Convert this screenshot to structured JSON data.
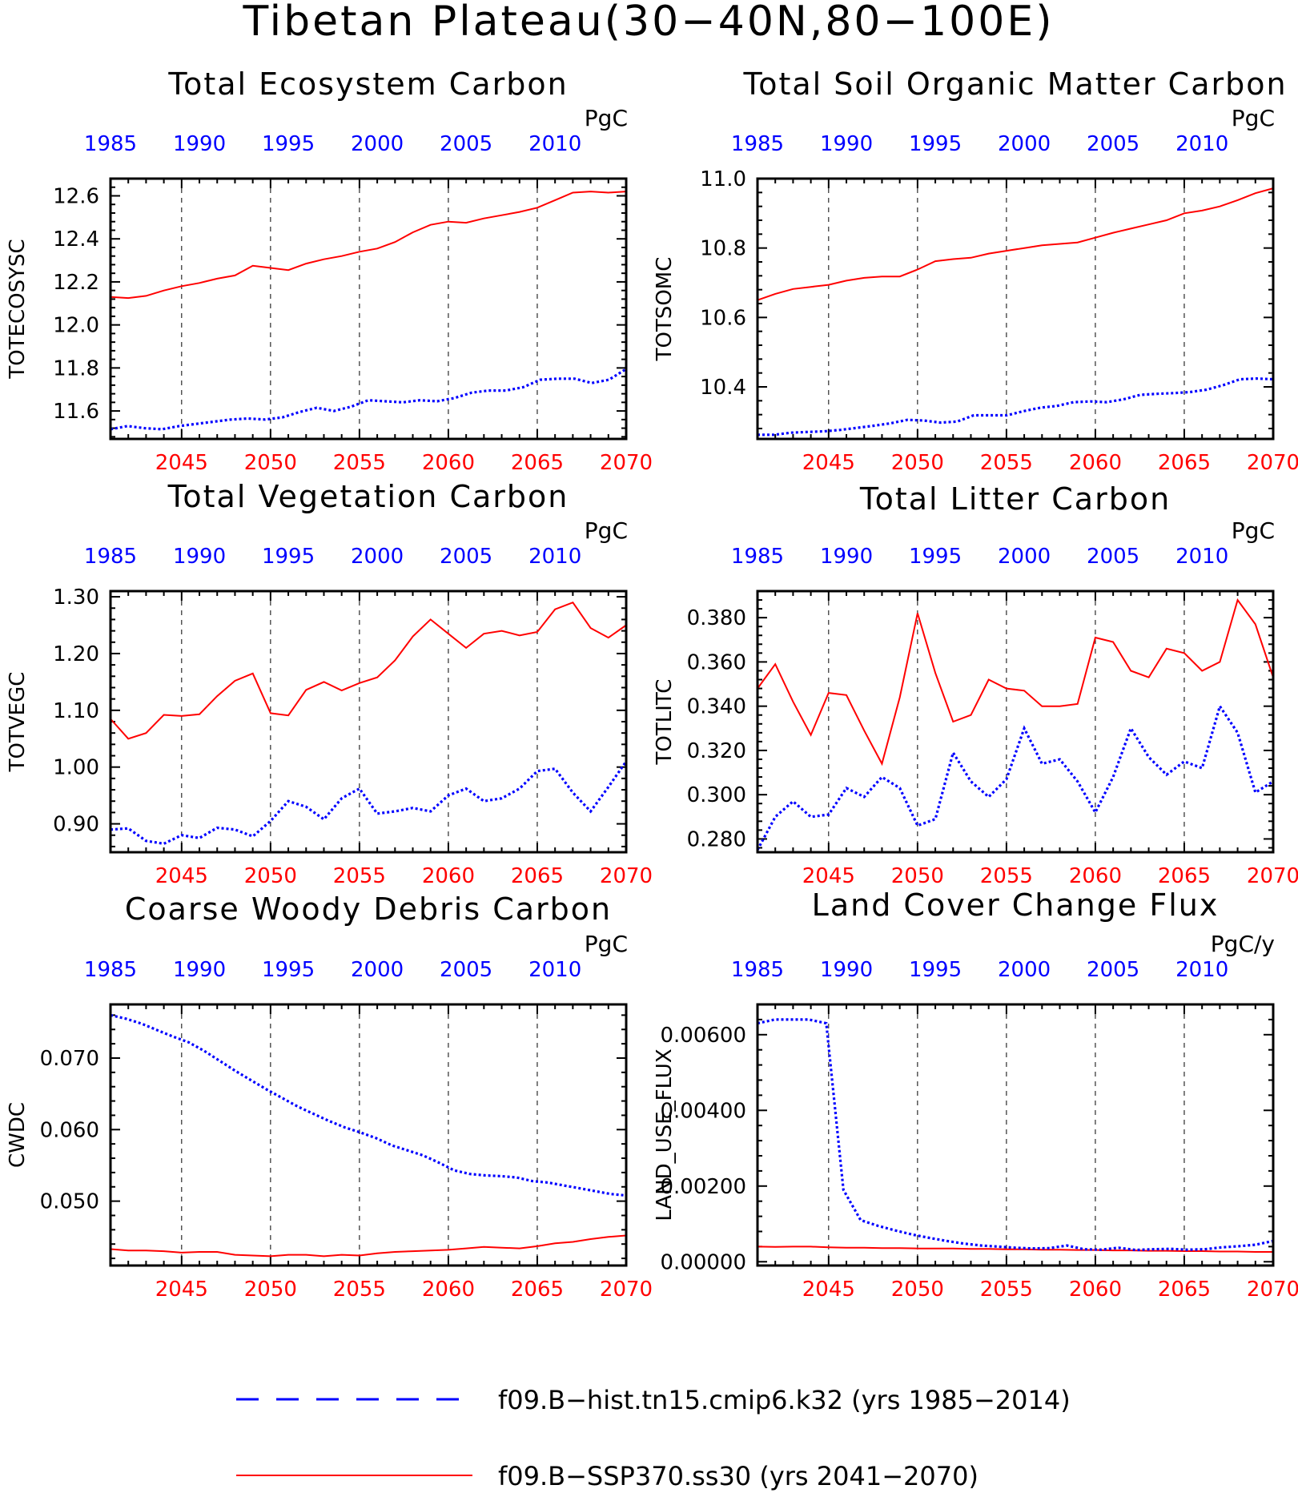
{
  "figure_title": "Tibetan Plateau(30−40N,80−100E)",
  "legend": [
    {
      "label": "f09.B−hist.tn15.cmip6.k32 (yrs 1985−2014)",
      "color": "#0000ff",
      "style": "dashed"
    },
    {
      "label": "f09.B−SSP370.ss30 (yrs 2041−2070)",
      "color": "#ff0000",
      "style": "solid"
    }
  ],
  "colors": {
    "hist": "#0000ff",
    "ssp": "#ff0000",
    "axis": "#000000"
  },
  "chart_data": [
    {
      "type": "line",
      "title": "Total Ecosystem Carbon",
      "ylabel": "TOTECOSYSC",
      "units": "PgC",
      "ylim": [
        11.47,
        12.68
      ],
      "yticks": [
        11.6,
        11.8,
        12.0,
        12.2,
        12.4,
        12.6
      ],
      "ytick_labels": [
        "11.6",
        "11.8",
        "12.0",
        "12.2",
        "12.4",
        "12.6"
      ],
      "x_bottom_ticks": [
        "2045",
        "2050",
        "2055",
        "2060",
        "2065",
        "2070"
      ],
      "x_top_ticks": [
        "1985",
        "1990",
        "1995",
        "2000",
        "2005",
        "2010"
      ],
      "series": [
        {
          "x_start": 2041,
          "values": [
            12.13,
            12.125,
            12.135,
            12.16,
            12.18,
            12.195,
            12.215,
            12.23,
            12.275,
            12.265,
            12.255,
            12.285,
            12.305,
            12.32,
            12.34,
            12.355,
            12.385,
            12.43,
            12.465,
            12.48,
            12.475,
            12.495,
            12.51,
            12.525,
            12.545,
            12.58,
            12.615,
            12.62,
            12.615,
            12.62
          ]
        },
        {
          "x_start": 1985,
          "values": [
            11.515,
            11.53,
            11.52,
            11.515,
            11.53,
            11.54,
            11.55,
            11.56,
            11.565,
            11.56,
            11.57,
            11.595,
            11.615,
            11.6,
            11.62,
            11.65,
            11.645,
            11.64,
            11.65,
            11.645,
            11.66,
            11.685,
            11.695,
            11.695,
            11.71,
            11.745,
            11.75,
            11.75,
            11.73,
            11.745,
            11.795
          ]
        }
      ]
    },
    {
      "type": "line",
      "title": "Total Soil Organic Matter Carbon",
      "ylabel": "TOTSOMC",
      "units": "PgC",
      "ylim": [
        10.25,
        11.0
      ],
      "yticks": [
        10.4,
        10.6,
        10.8,
        11.0
      ],
      "ytick_labels": [
        "10.4",
        "10.6",
        "10.8",
        "11.0"
      ],
      "x_bottom_ticks": [
        "2045",
        "2050",
        "2055",
        "2060",
        "2065",
        "2070"
      ],
      "x_top_ticks": [
        "1985",
        "1990",
        "1995",
        "2000",
        "2005",
        "2010"
      ],
      "series": [
        {
          "x_start": 2041,
          "values": [
            10.65,
            10.668,
            10.682,
            10.688,
            10.694,
            10.706,
            10.714,
            10.718,
            10.718,
            10.738,
            10.762,
            10.768,
            10.772,
            10.784,
            10.792,
            10.8,
            10.808,
            10.812,
            10.816,
            10.83,
            10.844,
            10.856,
            10.868,
            10.88,
            10.9,
            10.908,
            10.92,
            10.938,
            10.958,
            10.972
          ]
        },
        {
          "x_start": 1985,
          "values": [
            10.262,
            10.262,
            10.268,
            10.27,
            10.272,
            10.276,
            10.282,
            10.288,
            10.295,
            10.305,
            10.303,
            10.297,
            10.3,
            10.318,
            10.318,
            10.318,
            10.33,
            10.34,
            10.345,
            10.356,
            10.358,
            10.356,
            10.364,
            10.377,
            10.38,
            10.382,
            10.385,
            10.392,
            10.405,
            10.422,
            10.424,
            10.422
          ]
        }
      ]
    },
    {
      "type": "line",
      "title": "Total Vegetation Carbon",
      "ylabel": "TOTVEGC",
      "units": "PgC",
      "ylim": [
        0.85,
        1.31
      ],
      "yticks": [
        0.9,
        1.0,
        1.1,
        1.2,
        1.3
      ],
      "ytick_labels": [
        "0.90",
        "1.00",
        "1.10",
        "1.20",
        "1.30"
      ],
      "x_bottom_ticks": [
        "2045",
        "2050",
        "2055",
        "2060",
        "2065",
        "2070"
      ],
      "x_top_ticks": [
        "1985",
        "1990",
        "1995",
        "2000",
        "2005",
        "2010"
      ],
      "series": [
        {
          "x_start": 2041,
          "values": [
            1.085,
            1.05,
            1.06,
            1.092,
            1.09,
            1.093,
            1.125,
            1.152,
            1.165,
            1.095,
            1.091,
            1.136,
            1.15,
            1.135,
            1.148,
            1.158,
            1.188,
            1.23,
            1.26,
            1.235,
            1.21,
            1.235,
            1.24,
            1.232,
            1.238,
            1.278,
            1.29,
            1.245,
            1.228,
            1.25
          ]
        },
        {
          "x_start": 1985,
          "values": [
            0.89,
            0.892,
            0.87,
            0.865,
            0.88,
            0.875,
            0.893,
            0.89,
            0.878,
            0.905,
            0.94,
            0.93,
            0.908,
            0.945,
            0.962,
            0.918,
            0.922,
            0.928,
            0.922,
            0.95,
            0.962,
            0.94,
            0.945,
            0.962,
            0.993,
            0.997,
            0.955,
            0.922,
            0.965,
            1.01
          ]
        }
      ]
    },
    {
      "type": "line",
      "title": "Total Litter Carbon",
      "ylabel": "TOTLITC",
      "units": "PgC",
      "ylim": [
        0.274,
        0.392
      ],
      "yticks": [
        0.28,
        0.3,
        0.32,
        0.34,
        0.36,
        0.38
      ],
      "ytick_labels": [
        "0.280",
        "0.300",
        "0.320",
        "0.340",
        "0.360",
        "0.380"
      ],
      "x_bottom_ticks": [
        "2045",
        "2050",
        "2055",
        "2060",
        "2065",
        "2070"
      ],
      "x_top_ticks": [
        "1985",
        "1990",
        "1995",
        "2000",
        "2005",
        "2010"
      ],
      "series": [
        {
          "x_start": 2041,
          "values": [
            0.348,
            0.359,
            0.342,
            0.327,
            0.346,
            0.345,
            0.329,
            0.314,
            0.344,
            0.382,
            0.355,
            0.333,
            0.336,
            0.352,
            0.348,
            0.347,
            0.34,
            0.34,
            0.341,
            0.371,
            0.369,
            0.356,
            0.353,
            0.366,
            0.364,
            0.356,
            0.36,
            0.388,
            0.377,
            0.353
          ]
        },
        {
          "x_start": 1985,
          "values": [
            0.275,
            0.29,
            0.297,
            0.29,
            0.291,
            0.303,
            0.299,
            0.308,
            0.303,
            0.286,
            0.289,
            0.319,
            0.306,
            0.299,
            0.307,
            0.33,
            0.314,
            0.316,
            0.306,
            0.292,
            0.308,
            0.33,
            0.317,
            0.309,
            0.315,
            0.312,
            0.34,
            0.328,
            0.301,
            0.306
          ]
        }
      ]
    },
    {
      "type": "line",
      "title": "Coarse Woody Debris Carbon",
      "ylabel": "CWDC",
      "units": "PgC",
      "ylim": [
        0.041,
        0.0775
      ],
      "yticks": [
        0.05,
        0.06,
        0.07
      ],
      "ytick_labels": [
        "0.050",
        "0.060",
        "0.070"
      ],
      "x_bottom_ticks": [
        "2045",
        "2050",
        "2055",
        "2060",
        "2065",
        "2070"
      ],
      "x_top_ticks": [
        "1985",
        "1990",
        "1995",
        "2000",
        "2005",
        "2010"
      ],
      "series": [
        {
          "x_start": 2041,
          "values": [
            0.0433,
            0.0431,
            0.0431,
            0.043,
            0.0428,
            0.0429,
            0.0429,
            0.0425,
            0.0424,
            0.0423,
            0.0425,
            0.0425,
            0.0423,
            0.0425,
            0.0424,
            0.0427,
            0.0429,
            0.043,
            0.0431,
            0.0432,
            0.0434,
            0.0436,
            0.0435,
            0.0434,
            0.0437,
            0.0441,
            0.0443,
            0.0447,
            0.045,
            0.0452
          ]
        },
        {
          "x_start": 1985,
          "values": [
            0.076,
            0.0755,
            0.0748,
            0.0739,
            0.073,
            0.0722,
            0.071,
            0.0696,
            0.0682,
            0.0669,
            0.0656,
            0.0644,
            0.0632,
            0.0622,
            0.0612,
            0.0603,
            0.0596,
            0.0588,
            0.0578,
            0.0571,
            0.0564,
            0.0554,
            0.0543,
            0.0538,
            0.0536,
            0.0535,
            0.0533,
            0.0528,
            0.0526,
            0.0522,
            0.0518,
            0.0514,
            0.051,
            0.0508
          ]
        }
      ]
    },
    {
      "type": "line",
      "title": "Land Cover Change Flux",
      "ylabel": "LAND_USE_FLUX",
      "units": "PgC/y",
      "ylim": [
        -0.0001,
        0.0068
      ],
      "yticks": [
        0.0,
        0.002,
        0.004,
        0.006
      ],
      "ytick_labels": [
        "0.00000",
        "0.00200",
        "0.00400",
        "0.00600"
      ],
      "x_bottom_ticks": [
        "2045",
        "2050",
        "2055",
        "2060",
        "2065",
        "2070"
      ],
      "x_top_ticks": [
        "1985",
        "1990",
        "1995",
        "2000",
        "2005",
        "2010"
      ],
      "series": [
        {
          "x_start": 2041,
          "values": [
            0.0004,
            0.00039,
            0.0004,
            0.0004,
            0.00038,
            0.00037,
            0.00037,
            0.00036,
            0.00036,
            0.00035,
            0.00035,
            0.00035,
            0.00034,
            0.00034,
            0.00033,
            0.00033,
            0.00032,
            0.00032,
            0.00031,
            0.00031,
            0.0003,
            0.0003,
            0.00029,
            0.00029,
            0.00028,
            0.00028,
            0.00027,
            0.00027,
            0.00026,
            0.00026
          ]
        },
        {
          "x_start": 1985,
          "values": [
            0.0063,
            0.0064,
            0.0064,
            0.0064,
            0.0063,
            0.0019,
            0.0011,
            0.00095,
            0.00083,
            0.00072,
            0.00063,
            0.00055,
            0.00048,
            0.00043,
            0.0004,
            0.00037,
            0.00035,
            0.00036,
            0.00043,
            0.00033,
            0.00032,
            0.00037,
            0.00031,
            0.00033,
            0.00034,
            0.00032,
            0.00033,
            0.00038,
            0.00041,
            0.00045,
            0.00055
          ]
        }
      ]
    }
  ]
}
